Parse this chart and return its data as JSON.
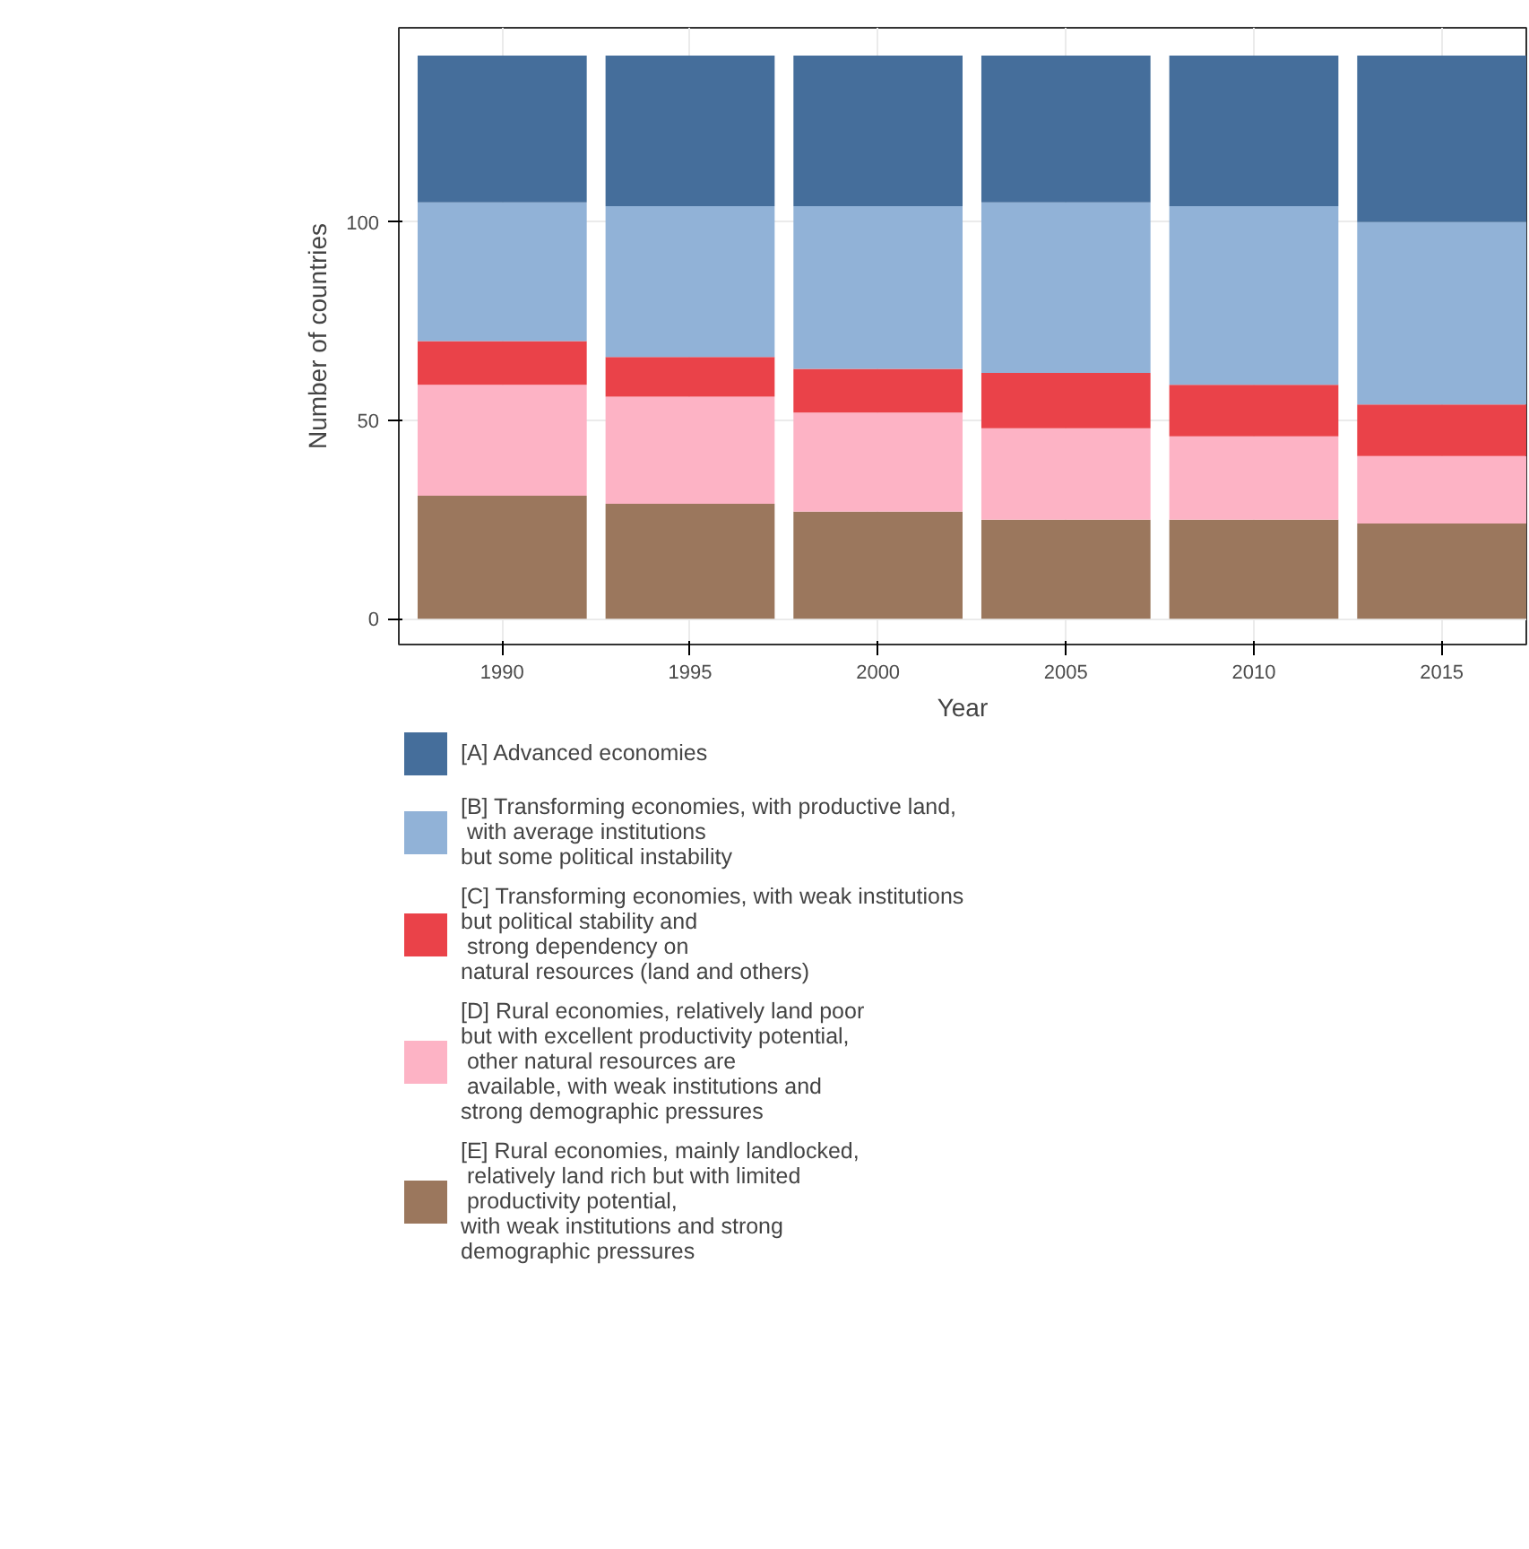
{
  "chart_data": {
    "type": "bar",
    "stacked": true,
    "xlabel": "Year",
    "ylabel": "Number of countries",
    "categories": [
      "1990",
      "1995",
      "2000",
      "2005",
      "2010",
      "2015"
    ],
    "ylim": [
      -6.5,
      149
    ],
    "yticks": [
      0,
      50,
      100
    ],
    "grid": true,
    "legend": "bottom",
    "series": [
      {
        "name": "[E] Rural economies, mainly landlocked,\n relatively land rich but with limited\n productivity potential,\nwith weak institutions and strong\ndemographic pressures",
        "color": "#9b775d",
        "values": [
          31,
          29,
          27,
          25,
          25,
          24
        ]
      },
      {
        "name": "[D] Rural economies, relatively land poor\nbut with excellent productivity potential,\n other natural resources are\n available, with weak institutions and\nstrong demographic pressures",
        "color": "#fdb3c5",
        "values": [
          28,
          27,
          25,
          23,
          21,
          17
        ]
      },
      {
        "name": "[C] Transforming economies, with weak institutions\nbut political stability and\n strong dependency on\nnatural resources (land and others)",
        "color": "#ea4249",
        "values": [
          11,
          10,
          11,
          14,
          13,
          13
        ]
      },
      {
        "name": "[B] Transforming economies, with productive land,\n with average institutions\nbut some political instability",
        "color": "#91b2d7",
        "values": [
          35,
          38,
          41,
          43,
          45,
          46
        ]
      },
      {
        "name": "[A] Advanced economies",
        "color": "#456e9b",
        "values": [
          37,
          38,
          38,
          37,
          38,
          42
        ]
      }
    ]
  }
}
